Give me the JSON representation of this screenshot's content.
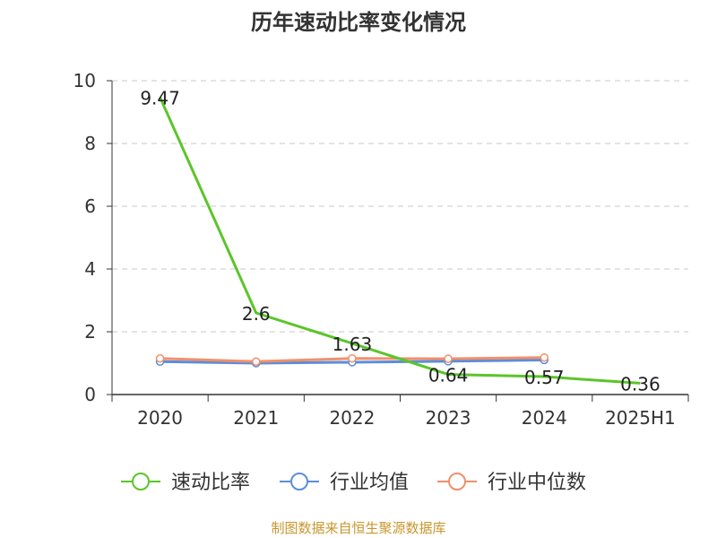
{
  "title": "历年速动比率变化情况",
  "footer": "制图数据来自恒生聚源数据库",
  "chart_data": {
    "type": "line",
    "title": "历年速动比率变化情况",
    "categories": [
      "2020",
      "2021",
      "2022",
      "2023",
      "2024",
      "2025H1"
    ],
    "ylim": [
      0,
      10
    ],
    "yticks": [
      0,
      2,
      4,
      6,
      8,
      10
    ],
    "grid": true,
    "legend_position": "bottom",
    "series": [
      {
        "name": "速动比率",
        "color": "#5bc52a",
        "values": [
          9.47,
          2.6,
          1.63,
          0.64,
          0.57,
          0.36
        ],
        "labels": [
          "9.47",
          "2.6",
          "1.63",
          "0.64",
          "0.57",
          "0.36"
        ]
      },
      {
        "name": "行业均值",
        "color": "#5b8ddb",
        "values": [
          1.05,
          1.0,
          1.03,
          1.06,
          1.1,
          null
        ]
      },
      {
        "name": "行业中位数",
        "color": "#f0906a",
        "values": [
          1.15,
          1.05,
          1.15,
          1.14,
          1.18,
          null
        ]
      }
    ]
  }
}
